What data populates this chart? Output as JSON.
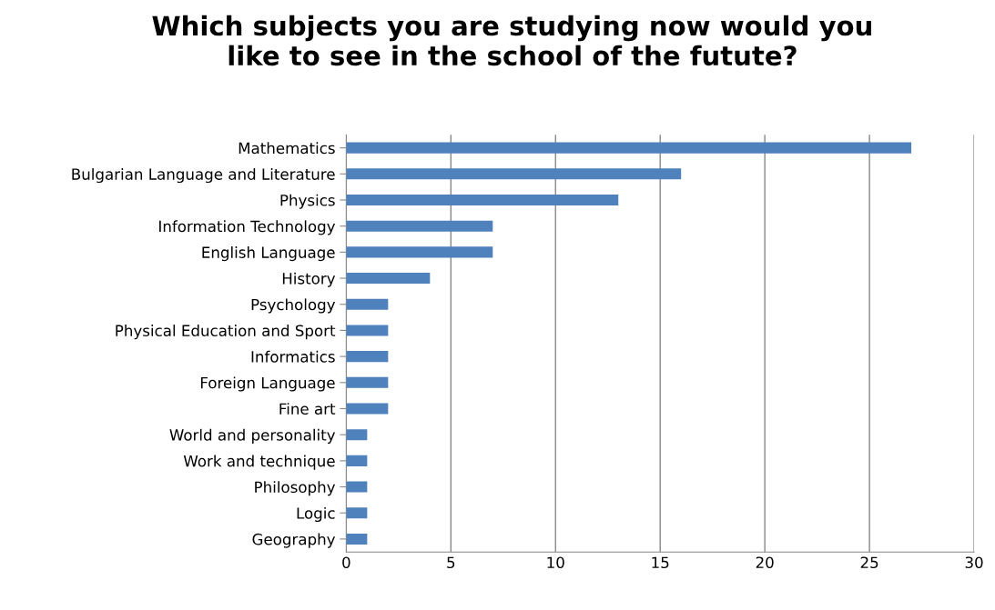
{
  "chart_data": {
    "type": "bar",
    "orientation": "horizontal",
    "title": "Which subjects you are studying now would you\nlike to see in the school of the futute?",
    "categories": [
      "Mathematics",
      "Bulgarian Language and Literature",
      "Physics",
      "Information Technology",
      "English Language",
      "History",
      "Psychology",
      "Physical Education and Sport",
      "Informatics",
      "Foreign Language",
      "Fine art",
      "World and personality",
      "Work and technique",
      "Philosophy",
      "Logic",
      "Geography"
    ],
    "values": [
      27,
      16,
      13,
      7,
      7,
      4,
      2,
      2,
      2,
      2,
      2,
      1,
      1,
      1,
      1,
      1
    ],
    "color": "#4f81bd",
    "xlim": [
      0,
      30
    ],
    "xticks": [
      0,
      5,
      10,
      15,
      20,
      25,
      30
    ],
    "grid": "x",
    "legend": false
  }
}
